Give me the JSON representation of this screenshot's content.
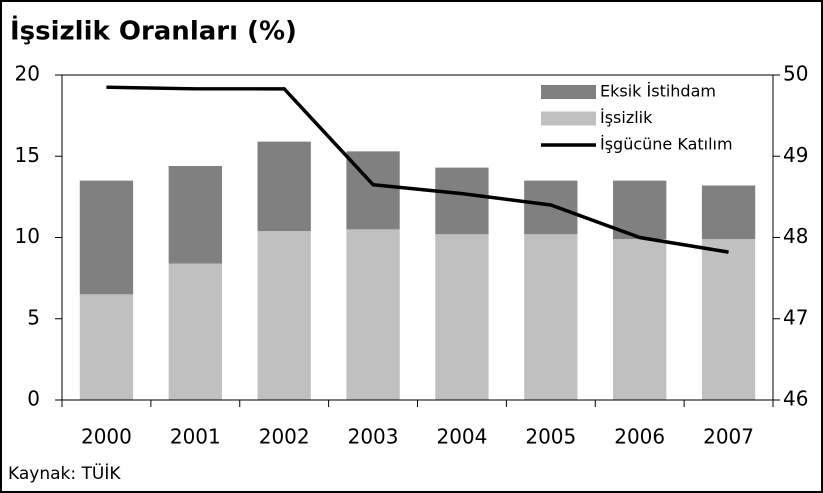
{
  "chart_data": {
    "type": "bar",
    "title": "İşsizlik Oranları (%)",
    "source": "Kaynak: TÜİK",
    "categories": [
      "2000",
      "2001",
      "2002",
      "2003",
      "2004",
      "2005",
      "2006",
      "2007"
    ],
    "series": [
      {
        "name": "Eksik İstihdam",
        "color": "#808080",
        "type": "bar",
        "values": [
          7.0,
          6.0,
          5.5,
          4.8,
          4.1,
          3.3,
          3.6,
          3.3
        ]
      },
      {
        "name": "İşsizlik",
        "color": "#c0c0c0",
        "type": "bar",
        "values": [
          6.5,
          8.4,
          10.4,
          10.5,
          10.2,
          10.2,
          9.9,
          9.9
        ]
      },
      {
        "name": "İşgücüne Katılım",
        "color": "#000000",
        "type": "line",
        "axis": "y2",
        "values": [
          49.85,
          49.83,
          49.83,
          48.65,
          48.54,
          48.4,
          48.0,
          47.82
        ]
      }
    ],
    "ylim": [
      0,
      20
    ],
    "yticks": [
      0,
      5,
      10,
      15,
      20
    ],
    "y2lim": [
      46,
      50
    ],
    "y2ticks": [
      46,
      47,
      48,
      49,
      50
    ],
    "stacked": true,
    "legend": "upper right",
    "grid": false
  }
}
